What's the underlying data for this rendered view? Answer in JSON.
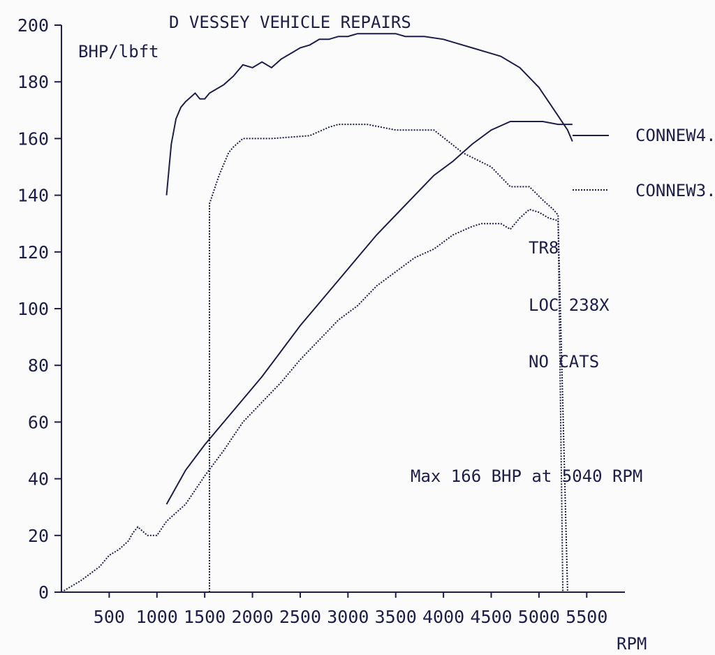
{
  "chart_data": {
    "type": "line",
    "title": "D VESSEY VEHICLE REPAIRS",
    "ylabel": "BHP/lbft",
    "xlabel": "RPM",
    "xlim": [
      0,
      5900
    ],
    "ylim": [
      0,
      200
    ],
    "x_ticks": [
      "500",
      "1000",
      "1500",
      "2000",
      "2500",
      "3000",
      "3500",
      "4000",
      "4500",
      "5000",
      "5500"
    ],
    "y_ticks": [
      "0",
      "20",
      "40",
      "60",
      "80",
      "100",
      "120",
      "140",
      "160",
      "180",
      "200"
    ],
    "grid": false,
    "legend": [
      {
        "label": "CONNEW4.",
        "style": "solid"
      },
      {
        "label": "CONNEW3.",
        "style": "dotted"
      }
    ],
    "annotations": [
      "TR8",
      "LOC 238X",
      "NO CATS",
      "Max 166 BHP at 5040 RPM"
    ],
    "series": [
      {
        "role": "torque",
        "style": "solid",
        "x": [
          1100,
          1150,
          1200,
          1250,
          1300,
          1400,
          1450,
          1500,
          1550,
          1600,
          1700,
          1800,
          1900,
          2000,
          2100,
          2200,
          2300,
          2400,
          2500,
          2600,
          2700,
          2800,
          2900,
          3000,
          3100,
          3200,
          3300,
          3400,
          3500,
          3600,
          3800,
          4000,
          4100,
          4300,
          4500,
          4600,
          4800,
          5000,
          5100,
          5200,
          5300,
          5350
        ],
        "y": [
          140,
          158,
          167,
          171,
          173,
          176,
          174,
          174,
          176,
          177,
          179,
          182,
          186,
          185,
          187,
          185,
          188,
          190,
          192,
          193,
          195,
          195,
          196,
          196,
          197,
          197,
          197,
          197,
          197,
          196,
          196,
          195,
          194,
          192,
          190,
          189,
          185,
          178,
          173,
          168,
          163,
          159
        ]
      },
      {
        "role": "power",
        "style": "solid",
        "x": [
          1100,
          1300,
          1500,
          1700,
          1900,
          2100,
          2300,
          2500,
          2700,
          2900,
          3100,
          3300,
          3500,
          3700,
          3900,
          4100,
          4300,
          4500,
          4700,
          4900,
          5040,
          5200,
          5350
        ],
        "y": [
          31,
          43,
          52,
          60,
          68,
          76,
          85,
          94,
          102,
          110,
          118,
          126,
          133,
          140,
          147,
          152,
          158,
          163,
          166,
          166,
          166,
          165,
          165
        ]
      },
      {
        "role": "torque",
        "style": "dotted",
        "x": [
          1550,
          1550,
          1650,
          1750,
          1800,
          1900,
          2200,
          2600,
          2800,
          2900,
          3000,
          3200,
          3500,
          3900,
          4200,
          4500,
          4700,
          4900,
          5050,
          5150,
          5200,
          5250
        ],
        "y": [
          0,
          137,
          147,
          155,
          157,
          160,
          160,
          161,
          164,
          165,
          165,
          165,
          163,
          163,
          155,
          150,
          143,
          143,
          138,
          135,
          133,
          0
        ]
      },
      {
        "role": "power",
        "style": "dotted",
        "x": [
          0,
          200,
          400,
          500,
          600,
          700,
          750,
          800,
          900,
          1000,
          1100,
          1300,
          1500,
          1700,
          1900,
          2100,
          2300,
          2500,
          2700,
          2900,
          3100,
          3300,
          3500,
          3700,
          3900,
          4100,
          4300,
          4400,
          4600,
          4700,
          4800,
          4900,
          5000,
          5100,
          5200,
          5300
        ],
        "y": [
          0,
          4,
          9,
          13,
          15,
          18,
          21,
          23,
          20,
          20,
          25,
          31,
          41,
          50,
          60,
          67,
          74,
          82,
          89,
          96,
          101,
          108,
          113,
          118,
          121,
          126,
          129,
          130,
          130,
          128,
          132,
          135,
          134,
          132,
          131,
          0
        ]
      }
    ]
  }
}
